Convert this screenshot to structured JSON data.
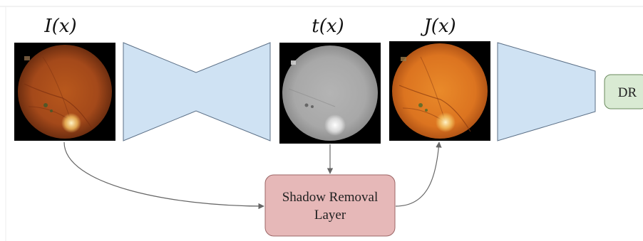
{
  "labels": {
    "input": "I(x)",
    "transmission": "t(x)",
    "output": "J(x)"
  },
  "shadow_layer": {
    "line1": "Shadow Removal",
    "line2": "Layer"
  },
  "classifier": {
    "label": "DR"
  },
  "colors": {
    "network_fill": "#cfe2f3",
    "network_stroke": "#5b6f86",
    "shadow_fill": "#e6b8b8",
    "shadow_stroke": "#9c6666",
    "dr_fill": "#d9ead3",
    "dr_stroke": "#6a8a5e",
    "arrow": "#666666"
  }
}
